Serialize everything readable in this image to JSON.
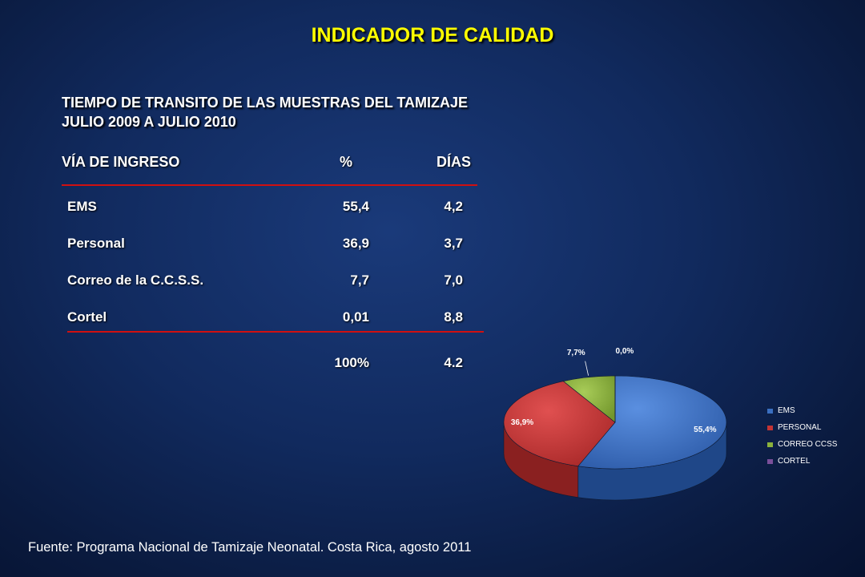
{
  "title": "INDICADOR DE CALIDAD",
  "subtitle_line1": "TIEMPO DE TRANSITO DE LAS MUESTRAS DEL TAMIZAJE",
  "subtitle_line2": "JULIO 2009 A  JULIO 2010",
  "table": {
    "headers": [
      "VÍA DE INGRESO",
      "%",
      "DÍAS"
    ],
    "rows": [
      {
        "via": "EMS",
        "pct": "55,4",
        "dias": "4,2"
      },
      {
        "via": "Personal",
        "pct": "36,9",
        "dias": "3,7"
      },
      {
        "via": "Correo de la C.C.S.S.",
        "pct": "7,7",
        "dias": "7,0"
      },
      {
        "via": "Cortel",
        "pct": "0,01",
        "dias": "8,8"
      }
    ],
    "totals": {
      "pct": "100%",
      "dias": "4.2"
    }
  },
  "chart_data": {
    "type": "pie",
    "title": "",
    "categories": [
      "EMS",
      "PERSONAL",
      "CORREO CCSS",
      "CORTEL"
    ],
    "values": [
      55.4,
      36.9,
      7.7,
      0.01
    ],
    "data_labels": [
      "55,4%",
      "36,9%",
      "7,7%",
      "0,0%"
    ],
    "colors": [
      "#3a6fc0",
      "#c43434",
      "#8bb23c",
      "#7a4f9a"
    ],
    "legend_position": "right",
    "style": "3d"
  },
  "footer": "Fuente: Programa Nacional de Tamizaje Neonatal. Costa Rica, agosto 2011"
}
